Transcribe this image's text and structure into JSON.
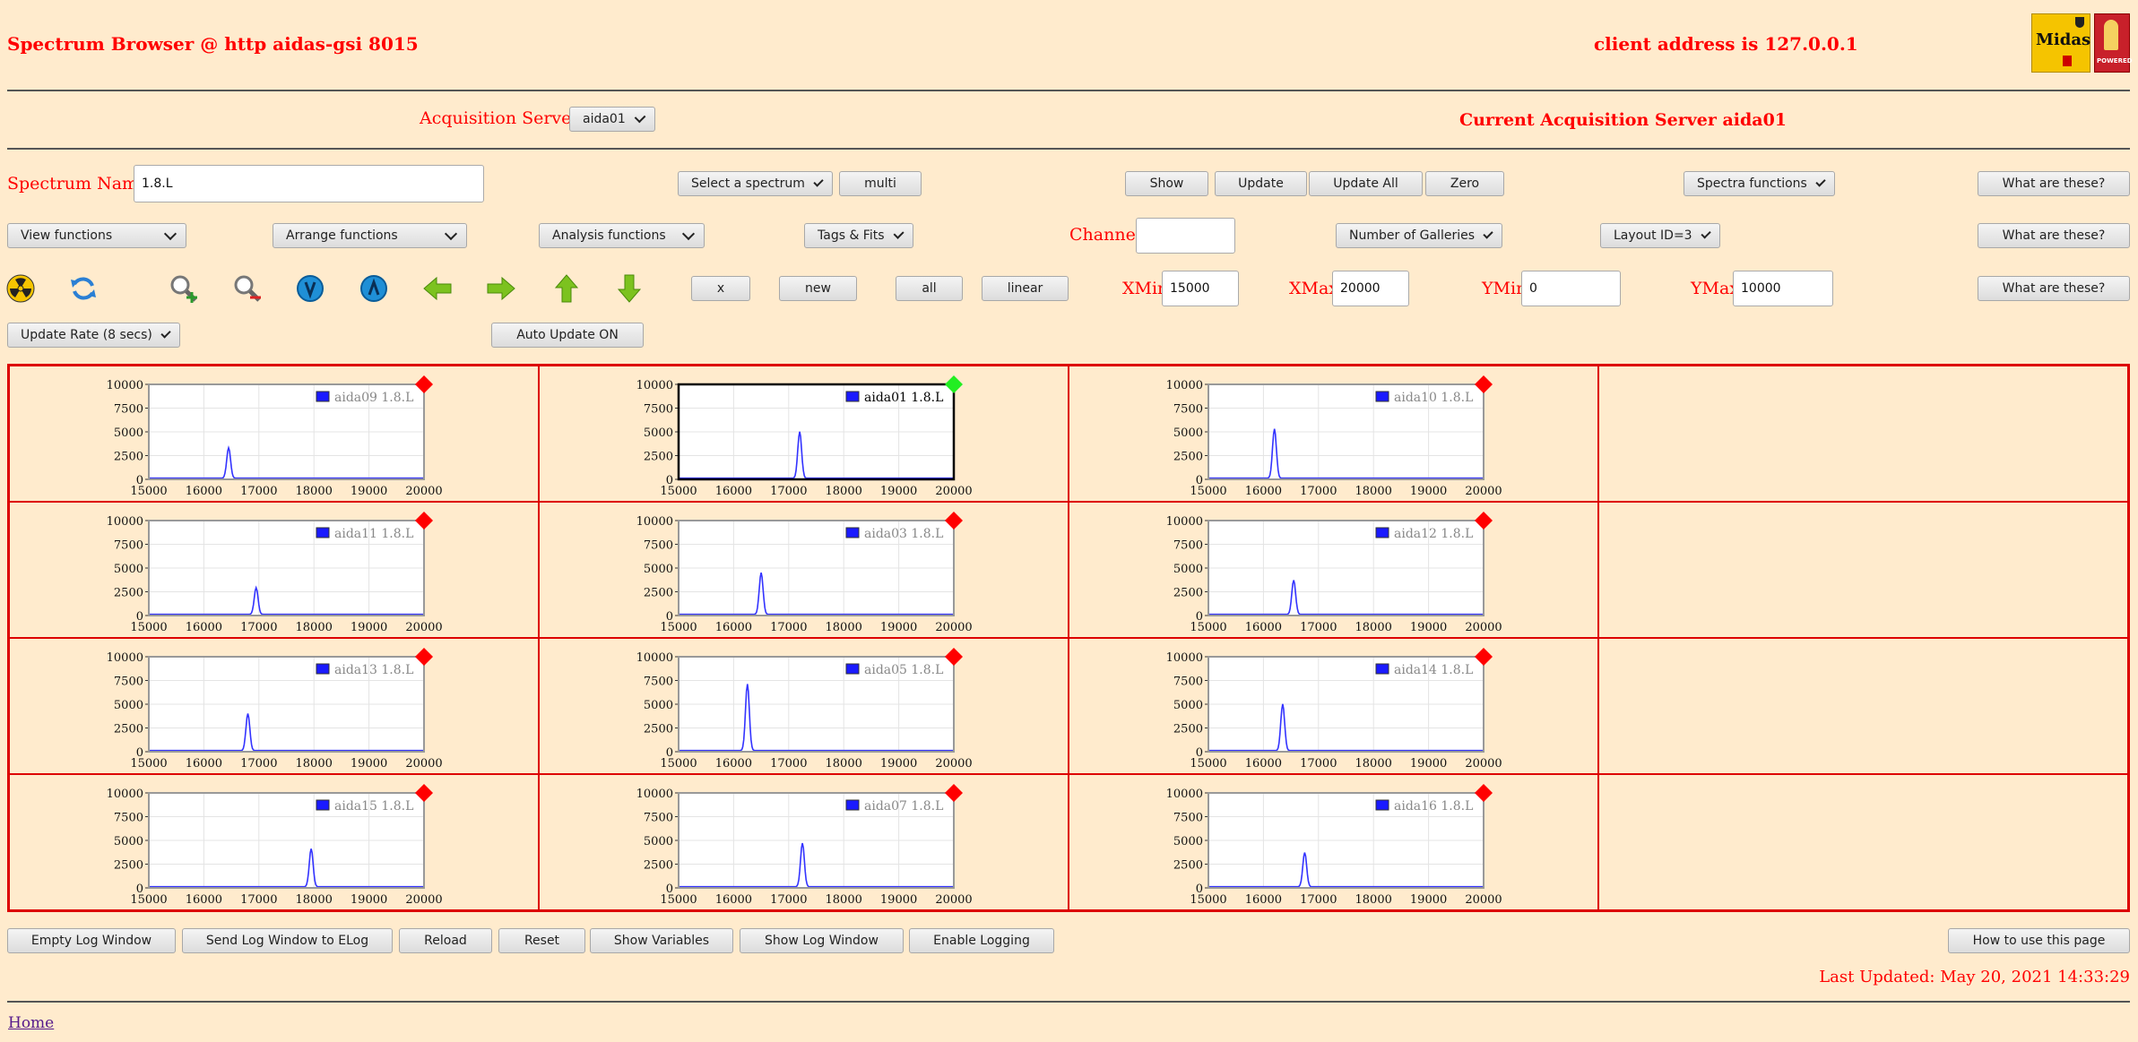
{
  "header": {
    "title": "Spectrum Browser @ http aidas-gsi 8015",
    "client_address": "client address is 127.0.0.1"
  },
  "acquisition": {
    "label": "Acquisition Servers",
    "selected": "aida01",
    "current": "Current Acquisition Server aida01"
  },
  "row1": {
    "spectrum_name_label": "Spectrum Name:",
    "spectrum_name_value": "1.8.L",
    "select_spectrum": "Select a spectrum",
    "multi": "multi",
    "show": "Show",
    "update": "Update",
    "update_all": "Update All",
    "zero": "Zero",
    "spectra_functions": "Spectra functions",
    "help": "What are these?"
  },
  "row2": {
    "view_functions": "View functions",
    "arrange_functions": "Arrange functions",
    "analysis_functions": "Analysis functions",
    "tags_fits": "Tags & Fits",
    "channel_label": "Channel:",
    "channel_value": "",
    "number_of_galleries": "Number of Galleries",
    "layout": "Layout ID=3",
    "help": "What are these?"
  },
  "row3": {
    "x": "x",
    "new": "new",
    "all": "all",
    "linear": "linear",
    "xmin_label": "XMin",
    "xmin_value": "15000",
    "xmax_label": "XMax",
    "xmax_value": "20000",
    "ymin_label": "YMin",
    "ymin_value": "0",
    "ymax_label": "YMax",
    "ymax_value": "10000",
    "help": "What are these?",
    "icons": [
      "radiation-icon",
      "refresh-icon",
      "zoom-in-icon",
      "zoom-out-icon",
      "down-blue-icon",
      "up-blue-icon",
      "arrow-left-icon",
      "arrow-right-icon",
      "arrow-up-icon",
      "arrow-down-icon"
    ]
  },
  "row4": {
    "update_rate": "Update Rate (8 secs)",
    "auto_update": "Auto Update ON"
  },
  "chart_data": {
    "type": "line",
    "x_ticks": [
      "15000",
      "16000",
      "17000",
      "18000",
      "19000",
      "20000"
    ],
    "y_ticks": [
      "0",
      "2500",
      "5000",
      "7500",
      "10000"
    ],
    "xlim": [
      15000,
      20000
    ],
    "ylim": [
      0,
      10000
    ],
    "grid": true,
    "legend": "top-right",
    "series_color": "#3333ff",
    "charts": [
      {
        "name": "aida09 1.8.L",
        "peak_x": 16450,
        "peak_y": 3200,
        "status": "red",
        "selected": false
      },
      {
        "name": "aida01 1.8.L",
        "peak_x": 17200,
        "peak_y": 4900,
        "status": "green",
        "selected": true
      },
      {
        "name": "aida10 1.8.L",
        "peak_x": 16200,
        "peak_y": 5200,
        "status": "red",
        "selected": false
      },
      {
        "name": "aida11 1.8.L",
        "peak_x": 16950,
        "peak_y": 2800,
        "status": "red",
        "selected": false
      },
      {
        "name": "aida03 1.8.L",
        "peak_x": 16500,
        "peak_y": 4400,
        "status": "red",
        "selected": false
      },
      {
        "name": "aida12 1.8.L",
        "peak_x": 16550,
        "peak_y": 3600,
        "status": "red",
        "selected": false
      },
      {
        "name": "aida13 1.8.L",
        "peak_x": 16800,
        "peak_y": 3900,
        "status": "red",
        "selected": false
      },
      {
        "name": "aida05 1.8.L",
        "peak_x": 16250,
        "peak_y": 7000,
        "status": "red",
        "selected": false
      },
      {
        "name": "aida14 1.8.L",
        "peak_x": 16350,
        "peak_y": 4900,
        "status": "red",
        "selected": false
      },
      {
        "name": "aida15 1.8.L",
        "peak_x": 17950,
        "peak_y": 4000,
        "status": "red",
        "selected": false
      },
      {
        "name": "aida07 1.8.L",
        "peak_x": 17250,
        "peak_y": 4600,
        "status": "red",
        "selected": false
      },
      {
        "name": "aida16 1.8.L",
        "peak_x": 16750,
        "peak_y": 3600,
        "status": "red",
        "selected": false
      }
    ]
  },
  "bottom": {
    "empty_log": "Empty Log Window",
    "send_log": "Send Log Window to ELog",
    "reload": "Reload",
    "reset": "Reset",
    "show_variables": "Show Variables",
    "show_log": "Show Log Window",
    "enable_logging": "Enable Logging",
    "how_to": "How to use this page",
    "last_updated": "Last Updated: May 20, 2021 14:33:29",
    "home": "Home"
  },
  "logos": {
    "midas_text": "Midas",
    "powered_text": "POWERED"
  }
}
